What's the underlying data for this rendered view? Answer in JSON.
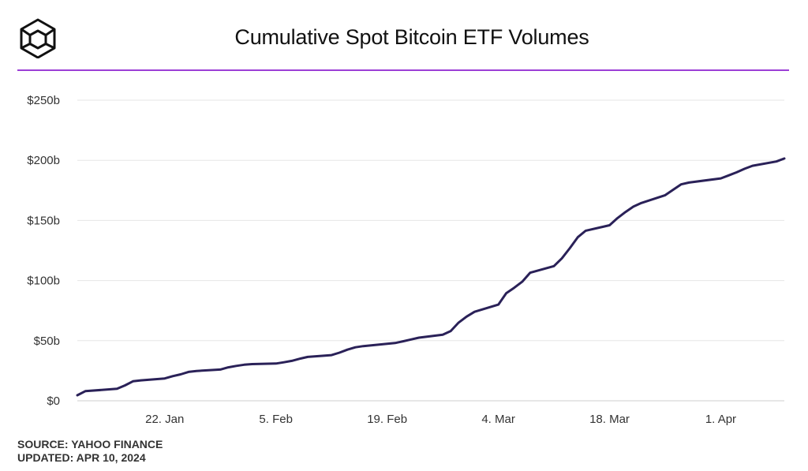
{
  "colors": {
    "accent_rule": "#9b3fd6",
    "series_line": "#2a2158",
    "grid": "#e6e6e6"
  },
  "logo_icon": "cube-icon",
  "footer": {
    "source": "SOURCE: YAHOO FINANCE",
    "updated": "UPDATED: APR 10, 2024"
  },
  "chart_data": {
    "type": "line",
    "title": "Cumulative Spot Bitcoin ETF Volumes",
    "xlabel": "",
    "ylabel": "",
    "grid": "horizontal",
    "x_range": [
      "2024-01-11",
      "2024-04-09"
    ],
    "ylim": [
      0,
      250
    ],
    "y_ticks": [
      0,
      50,
      100,
      150,
      200,
      250
    ],
    "y_tick_labels": [
      "$0",
      "$50b",
      "$100b",
      "$150b",
      "$200b",
      "$250b"
    ],
    "x_ticks": [
      "2024-01-22",
      "2024-02-05",
      "2024-02-19",
      "2024-03-04",
      "2024-03-18",
      "2024-04-01"
    ],
    "x_tick_labels": [
      "22. Jan",
      "5. Feb",
      "19. Feb",
      "4. Mar",
      "18. Mar",
      "1. Apr"
    ],
    "series": [
      {
        "x": [
          "2024-01-11",
          "2024-01-12",
          "2024-01-16",
          "2024-01-17",
          "2024-01-18",
          "2024-01-19",
          "2024-01-22",
          "2024-01-23",
          "2024-01-24",
          "2024-01-25",
          "2024-01-26",
          "2024-01-29",
          "2024-01-30",
          "2024-01-31",
          "2024-02-01",
          "2024-02-02",
          "2024-02-05",
          "2024-02-06",
          "2024-02-07",
          "2024-02-08",
          "2024-02-09",
          "2024-02-12",
          "2024-02-13",
          "2024-02-14",
          "2024-02-15",
          "2024-02-16",
          "2024-02-20",
          "2024-02-21",
          "2024-02-22",
          "2024-02-23",
          "2024-02-26",
          "2024-02-27",
          "2024-02-28",
          "2024-02-29",
          "2024-03-01",
          "2024-03-04",
          "2024-03-05",
          "2024-03-06",
          "2024-03-07",
          "2024-03-08",
          "2024-03-11",
          "2024-03-12",
          "2024-03-13",
          "2024-03-14",
          "2024-03-15",
          "2024-03-18",
          "2024-03-19",
          "2024-03-20",
          "2024-03-21",
          "2024-03-22",
          "2024-03-25",
          "2024-03-26",
          "2024-03-27",
          "2024-03-28",
          "2024-04-01",
          "2024-04-02",
          "2024-04-03",
          "2024-04-04",
          "2024-04-05",
          "2024-04-08",
          "2024-04-09"
        ],
        "values": [
          4.6,
          8.0,
          10.0,
          12.8,
          16.2,
          17.0,
          18.6,
          20.5,
          22.0,
          24.0,
          24.8,
          26.0,
          27.8,
          29.0,
          30.0,
          30.5,
          31.0,
          32.0,
          33.2,
          35.0,
          36.5,
          38.0,
          40.0,
          42.5,
          44.5,
          45.5,
          48.0,
          49.5,
          51.0,
          52.5,
          55.0,
          58.0,
          65.0,
          70.0,
          74.0,
          80.0,
          89.5,
          94.0,
          99.0,
          106.5,
          112.0,
          118.5,
          127.0,
          136.0,
          141.5,
          146.0,
          152.0,
          157.0,
          161.5,
          164.5,
          171.0,
          175.5,
          180.0,
          181.5,
          185.0,
          187.5,
          190.0,
          193.0,
          195.5,
          199.0,
          201.5
        ]
      }
    ]
  }
}
